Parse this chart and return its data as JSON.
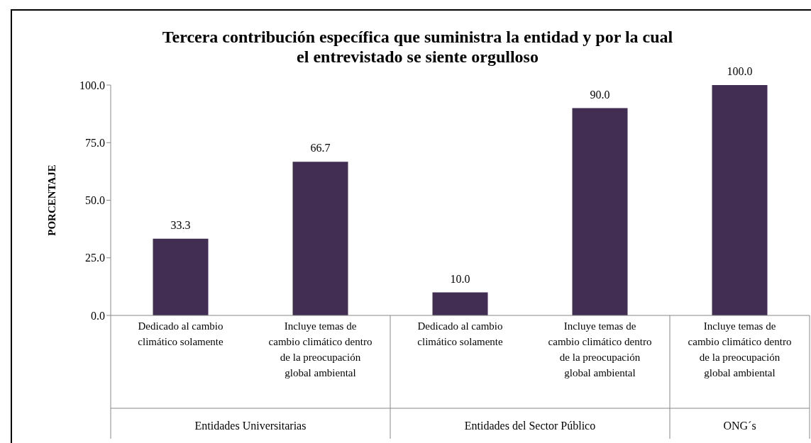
{
  "chart_data": {
    "type": "bar",
    "title": "Tercera contribución específica que suministra la entidad y por la cual el entrevistado se siente orgulloso",
    "ylabel": "PORCENTAJE",
    "categories": [
      "Dedicado al cambio climático solamente",
      "Incluye temas de cambio climático dentro de la preocupación global ambiental",
      "Dedicado al cambio climático solamente",
      "Incluye temas de cambio climático dentro de la preocupación global ambiental",
      "Incluye temas de cambio climático dentro de la preocupación global ambiental"
    ],
    "values": [
      33.3,
      66.7,
      10.0,
      90.0,
      100.0
    ],
    "color": "#412e52",
    "value_labels": [
      "33.3",
      "66.7",
      "10.0",
      "90.0",
      "100.0"
    ],
    "ylim": [
      0,
      100
    ],
    "yticks": [
      {
        "value": 0,
        "label": "0.0"
      },
      {
        "value": 25,
        "label": "25.0"
      },
      {
        "value": 50,
        "label": "50.0"
      },
      {
        "value": 75,
        "label": "75.0"
      },
      {
        "value": 100,
        "label": "100.0"
      }
    ],
    "annotations": [
      "Entidades Universitarias",
      "Entidades del Sector Público",
      "ONG´s"
    ],
    "grid": false
  }
}
